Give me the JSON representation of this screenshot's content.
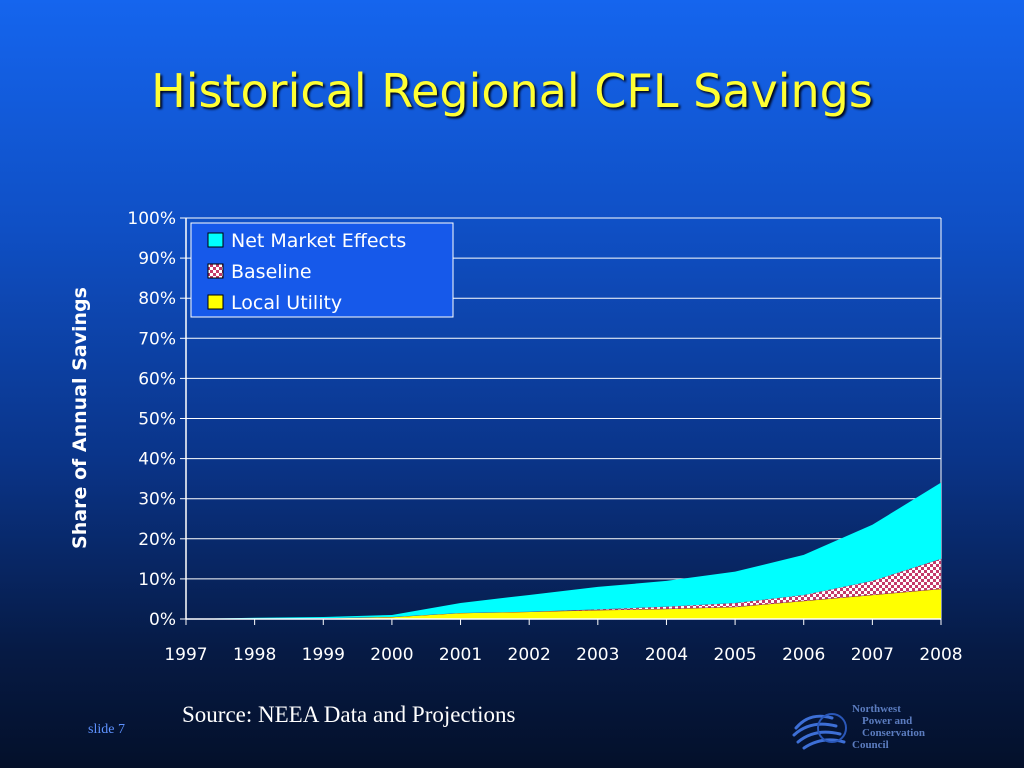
{
  "slide": {
    "title": "Historical Regional CFL Savings",
    "source": "Source: NEEA Data and Projections",
    "slide_number": "slide 7",
    "logo": {
      "lines": [
        "Northwest",
        "Power and",
        "Conservation",
        "Council"
      ],
      "icon": "waves-emblem-icon"
    }
  },
  "chart_data": {
    "type": "area",
    "stacked": true,
    "title": "",
    "xlabel": "",
    "ylabel": "Share of Annual Savings",
    "categories": [
      "1997",
      "1998",
      "1999",
      "2000",
      "2001",
      "2002",
      "2003",
      "2004",
      "2005",
      "2006",
      "2007",
      "2008"
    ],
    "ylim": [
      0,
      100
    ],
    "yticks": [
      "0%",
      "10%",
      "20%",
      "30%",
      "40%",
      "50%",
      "60%",
      "70%",
      "80%",
      "90%",
      "100%"
    ],
    "grid": true,
    "legend_position": "top-left",
    "series": [
      {
        "name": "Local Utility",
        "values": [
          0,
          0,
          0.2,
          0.5,
          1.5,
          1.8,
          2.2,
          2.5,
          3.0,
          4.5,
          6.0,
          7.5
        ],
        "color": "#ffff00",
        "pattern": "solid"
      },
      {
        "name": "Baseline",
        "values": [
          0,
          0,
          0,
          0,
          0,
          0,
          0.2,
          0.6,
          1.0,
          1.5,
          3.5,
          7.5
        ],
        "color": "#ff8ad8",
        "pattern": "checker"
      },
      {
        "name": "Net Market Effects",
        "values": [
          0,
          0.3,
          0.3,
          0.5,
          2.5,
          4.2,
          5.6,
          6.4,
          7.8,
          10.0,
          14.0,
          19.0
        ],
        "color": "#00ffff",
        "pattern": "solid"
      }
    ],
    "legend_order": [
      "Net Market Effects",
      "Baseline",
      "Local Utility"
    ]
  }
}
